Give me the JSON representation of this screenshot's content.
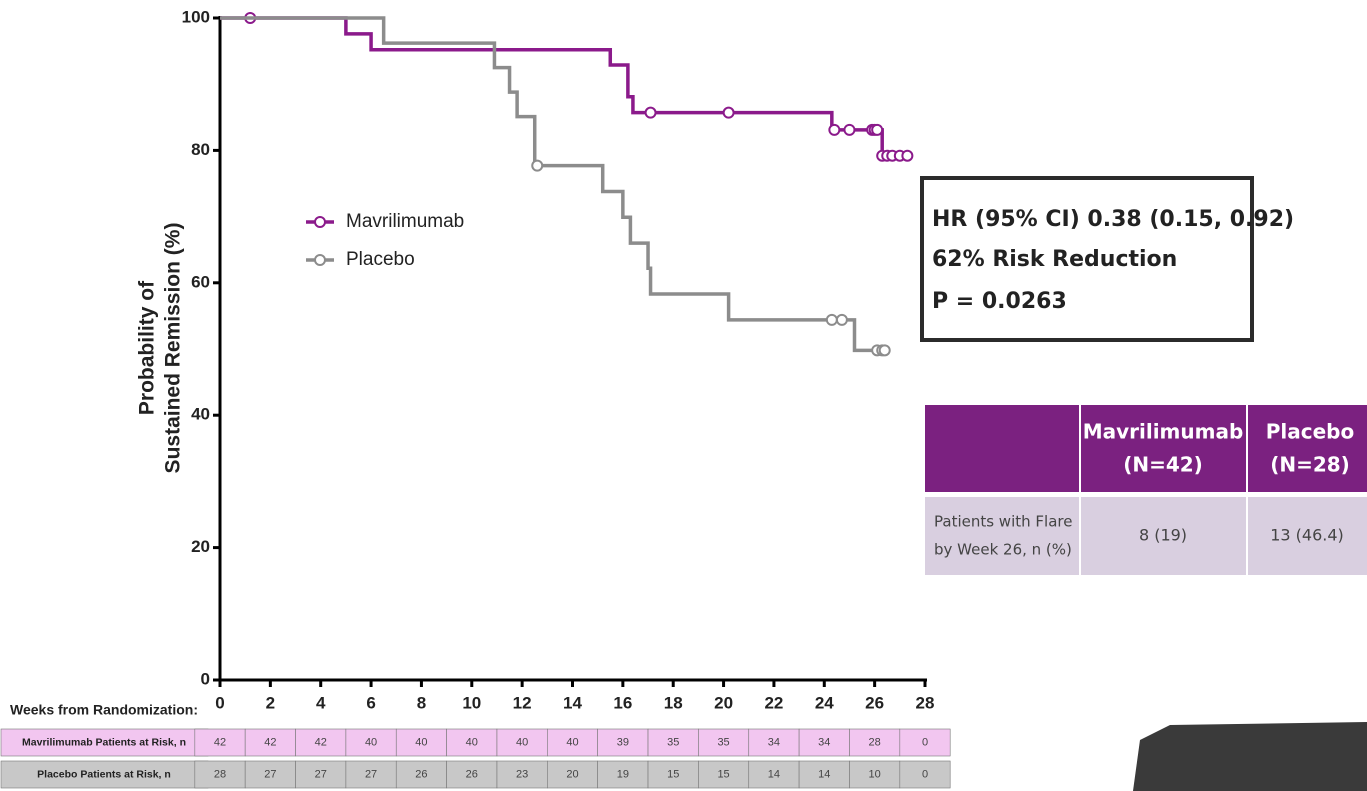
{
  "chart_data": {
    "type": "step",
    "y_label_lines": [
      "Probability of",
      "Sustained Remission (%)"
    ],
    "xlim": [
      0,
      28
    ],
    "xticks": [
      0,
      2,
      4,
      6,
      8,
      10,
      12,
      14,
      16,
      18,
      20,
      22,
      24,
      26,
      28
    ],
    "ylim": [
      0,
      100
    ],
    "yticks": [
      0,
      20,
      40,
      60,
      80,
      100
    ],
    "series": [
      {
        "name": "Mavrilimumab",
        "color": "#8b1a8b",
        "x": [
          0,
          5,
          6,
          15.5,
          16.2,
          16.4,
          24.3,
          26.3,
          27.3
        ],
        "values": [
          100,
          97.6,
          95.2,
          92.9,
          88.1,
          85.7,
          83.1,
          79.2,
          79.2
        ],
        "censored_x": [
          1.2,
          17.1,
          20.2,
          24.4,
          25,
          25.9,
          26,
          26.1,
          26.3,
          26.5,
          26.7,
          27,
          27.3
        ],
        "censored_values": [
          100,
          85.7,
          85.7,
          83.1,
          83.1,
          83.1,
          83.1,
          83.1,
          79.2,
          79.2,
          79.2,
          79.2,
          79.2
        ]
      },
      {
        "name": "Placebo",
        "color": "#8c8c8c",
        "x": [
          0,
          6.5,
          10.9,
          11.5,
          11.8,
          12.5,
          15.2,
          16,
          16.3,
          17,
          17.1,
          20.2,
          25.2,
          26.4
        ],
        "values": [
          100,
          96.2,
          92.5,
          88.8,
          85.1,
          77.7,
          73.8,
          69.9,
          66,
          62.2,
          58.3,
          54.4,
          49.8,
          49.8
        ],
        "censored_x": [
          12.6,
          24.3,
          24.7,
          26.1,
          26.3,
          26.4
        ],
        "censored_values": [
          77.7,
          54.4,
          54.4,
          49.8,
          49.8,
          49.8
        ]
      }
    ],
    "annotation": [
      "HR (95% CI) 0.38 (0.15, 0.92)",
      "62% Risk Reduction",
      "P = 0.0263"
    ]
  },
  "risk_table": {
    "title": "Weeks from Randomization:",
    "rows": [
      {
        "label": "Mavrilimumab Patients at Risk, n",
        "values": [
          42,
          42,
          42,
          40,
          40,
          40,
          40,
          40,
          39,
          35,
          35,
          34,
          34,
          28,
          0
        ]
      },
      {
        "label": "Placebo Patients at Risk, n",
        "values": [
          28,
          27,
          27,
          27,
          26,
          26,
          23,
          20,
          19,
          15,
          15,
          14,
          14,
          10,
          0
        ]
      }
    ]
  },
  "flare_table": {
    "header": [
      "Mavrilimumab",
      "(N=42)",
      "Placebo",
      "(N=28)"
    ],
    "row_label": [
      "Patients with Flare",
      "by Week 26, n (%)"
    ],
    "cells": [
      "8 (19)",
      "13 (46.4)"
    ]
  }
}
